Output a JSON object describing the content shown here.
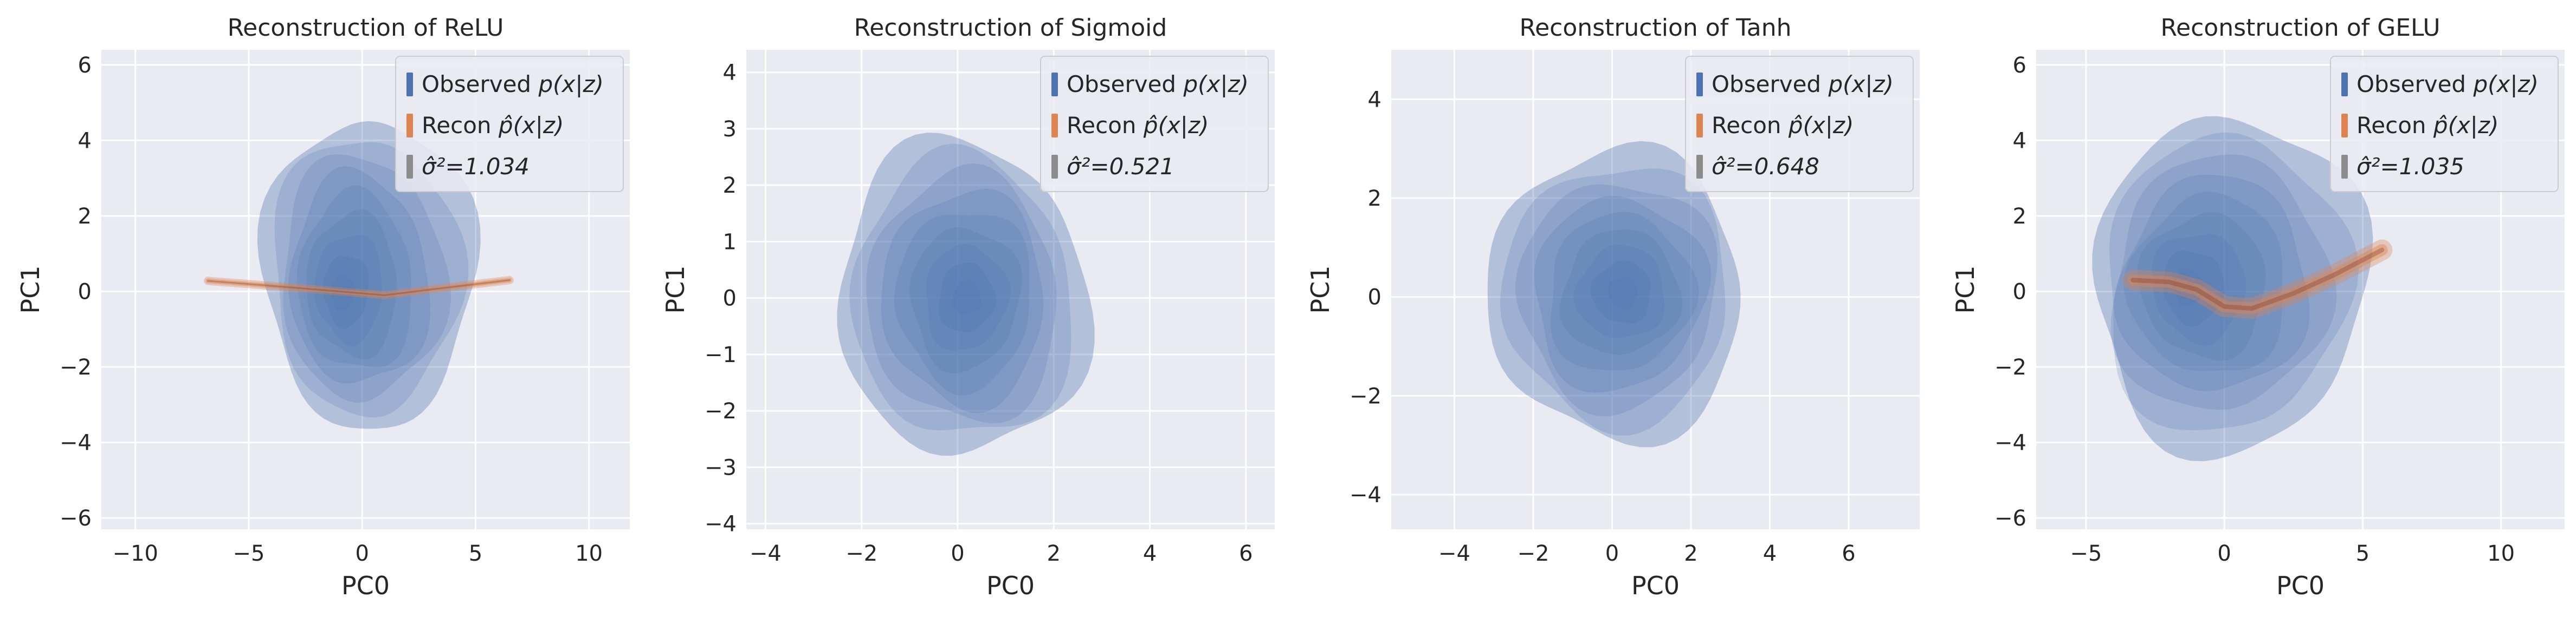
{
  "style": {
    "axes_bg": "#EAEAF2",
    "grid": "#FFFFFF",
    "observed_color": "#4C72B0",
    "recon_color": "#DD8452",
    "sigma_color": "#8C8C8C",
    "legend_bg": "#EAEAF2",
    "legend_edge": "#CCCCCC"
  },
  "chart_data": [
    {
      "type": "kde-contour",
      "title": "Reconstruction of ReLU",
      "xlabel": "PC0",
      "ylabel": "PC1",
      "xlim": [
        -11.5,
        11.8
      ],
      "ylim": [
        -6.3,
        6.4
      ],
      "xticks": [
        -10,
        -5,
        0,
        5,
        10
      ],
      "yticks": [
        -6,
        -4,
        -2,
        0,
        2,
        4,
        6
      ],
      "xtick_labels": [
        "−10",
        "−5",
        "0",
        "5",
        "10"
      ],
      "ytick_labels": [
        "−6",
        "−4",
        "−2",
        "0",
        "2",
        "4",
        "6"
      ],
      "grid": true,
      "legend_position": "top-right",
      "legend": [
        {
          "label": "Observed",
          "math": "p(x|z)"
        },
        {
          "label": "Recon",
          "math": "p̂(x|z)"
        },
        {
          "label": "",
          "math": "σ̂²=1.034"
        }
      ],
      "observed": {
        "center": [
          0.3,
          0.5
        ],
        "radius": [
          4.6,
          4.2
        ],
        "levels": 9,
        "core": [
          -1.0,
          -0.1
        ]
      },
      "recon": {
        "path": [
          [
            -6.8,
            0.28
          ],
          [
            -3.0,
            0.1
          ],
          [
            0.0,
            -0.05
          ],
          [
            1.0,
            -0.1
          ],
          [
            3.0,
            0.05
          ],
          [
            6.5,
            0.3
          ]
        ],
        "width": 0.22
      }
    },
    {
      "type": "kde-contour",
      "title": "Reconstruction of Sigmoid",
      "xlabel": "PC0",
      "ylabel": "PC1",
      "xlim": [
        -4.4,
        6.6
      ],
      "ylim": [
        -4.1,
        4.4
      ],
      "xticks": [
        -4,
        -2,
        0,
        2,
        4,
        6
      ],
      "yticks": [
        -4,
        -3,
        -2,
        -1,
        0,
        1,
        2,
        3,
        4
      ],
      "xtick_labels": [
        "−4",
        "−2",
        "0",
        "2",
        "4",
        "6"
      ],
      "ytick_labels": [
        "−4",
        "−3",
        "−2",
        "−1",
        "0",
        "1",
        "2",
        "3",
        "4"
      ],
      "grid": true,
      "legend_position": "top-right",
      "legend": [
        {
          "label": "Observed",
          "math": "p(x|z)"
        },
        {
          "label": "Recon",
          "math": "p̂(x|z)"
        },
        {
          "label": "",
          "math": "σ̂²=0.521"
        }
      ],
      "observed": {
        "center": [
          0.1,
          0.0
        ],
        "radius": [
          2.6,
          2.8
        ],
        "levels": 9,
        "core": [
          0.2,
          0.0
        ]
      },
      "recon": null
    },
    {
      "type": "kde-contour",
      "title": "Reconstruction of Tanh",
      "xlabel": "PC0",
      "ylabel": "PC1",
      "xlim": [
        -5.6,
        7.8
      ],
      "ylim": [
        -4.7,
        5.0
      ],
      "xticks": [
        -4,
        -2,
        0,
        2,
        4,
        6
      ],
      "yticks": [
        -4,
        -2,
        0,
        2,
        4
      ],
      "xtick_labels": [
        "−4",
        "−2",
        "0",
        "2",
        "4",
        "6"
      ],
      "ytick_labels": [
        "−4",
        "−2",
        "0",
        "2",
        "4"
      ],
      "grid": true,
      "legend_position": "top-right",
      "legend": [
        {
          "label": "Observed",
          "math": "p(x|z)"
        },
        {
          "label": "Recon",
          "math": "p̂(x|z)"
        },
        {
          "label": "",
          "math": "σ̂²=0.648"
        }
      ],
      "observed": {
        "center": [
          0.1,
          0.05
        ],
        "radius": [
          3.3,
          2.9
        ],
        "levels": 9,
        "core": [
          0.3,
          0.1
        ]
      },
      "recon": null
    },
    {
      "type": "kde-contour",
      "title": "Reconstruction of GELU",
      "xlabel": "PC0",
      "ylabel": "PC1",
      "xlim": [
        -6.8,
        12.3
      ],
      "ylim": [
        -6.3,
        6.4
      ],
      "xticks": [
        -5,
        0,
        5,
        10
      ],
      "yticks": [
        -6,
        -4,
        -2,
        0,
        2,
        4,
        6
      ],
      "xtick_labels": [
        "−5",
        "0",
        "5",
        "10"
      ],
      "ytick_labels": [
        "−6",
        "−4",
        "−2",
        "0",
        "2",
        "4",
        "6"
      ],
      "grid": true,
      "legend_position": "top-right",
      "legend": [
        {
          "label": "Observed",
          "math": "p(x|z)"
        },
        {
          "label": "Recon",
          "math": "p̂(x|z)"
        },
        {
          "label": "",
          "math": "σ̂²=1.035"
        }
      ],
      "observed": {
        "center": [
          0.2,
          0.2
        ],
        "radius": [
          5.0,
          4.4
        ],
        "levels": 9,
        "core": [
          -1.5,
          0.1
        ]
      },
      "recon": {
        "path": [
          [
            -3.3,
            0.3
          ],
          [
            -2.0,
            0.25
          ],
          [
            -1.0,
            0.05
          ],
          [
            0.0,
            -0.4
          ],
          [
            1.0,
            -0.45
          ],
          [
            2.5,
            -0.05
          ],
          [
            4.0,
            0.45
          ],
          [
            5.7,
            1.1
          ]
        ],
        "width": 0.55
      }
    }
  ]
}
